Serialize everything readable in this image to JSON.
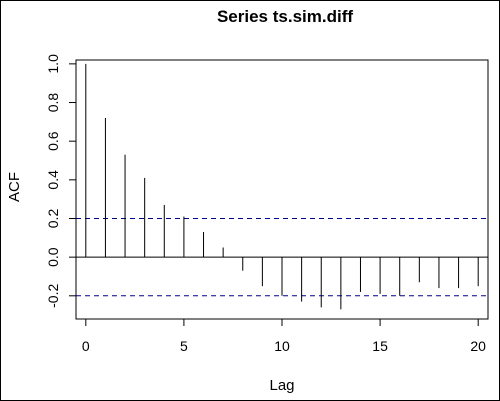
{
  "chart_data": {
    "type": "bar",
    "title": "Series  ts.sim.diff",
    "xlabel": "Lag",
    "ylabel": "ACF",
    "xlim": [
      -0.5,
      20.5
    ],
    "ylim": [
      -0.32,
      1.02
    ],
    "x_ticks": [
      0,
      5,
      10,
      15,
      20
    ],
    "x_tick_labels": [
      "0",
      "5",
      "10",
      "15",
      "20"
    ],
    "y_ticks": [
      -0.2,
      0.0,
      0.2,
      0.4,
      0.6,
      0.8,
      1.0
    ],
    "y_tick_labels": [
      "-0.2",
      "0.0",
      "0.2",
      "0.4",
      "0.6",
      "0.8",
      "1.0"
    ],
    "lags": [
      0,
      1,
      2,
      3,
      4,
      5,
      6,
      7,
      8,
      9,
      10,
      11,
      12,
      13,
      14,
      15,
      16,
      17,
      18,
      19,
      20
    ],
    "acf": [
      1.0,
      0.72,
      0.53,
      0.41,
      0.27,
      0.21,
      0.13,
      0.05,
      -0.07,
      -0.15,
      -0.2,
      -0.23,
      -0.26,
      -0.27,
      -0.18,
      -0.19,
      -0.2,
      -0.13,
      -0.16,
      -0.16,
      -0.15
    ],
    "confidence_bound": 0.2,
    "confidence_line_color": "#00008b",
    "grid": false
  }
}
